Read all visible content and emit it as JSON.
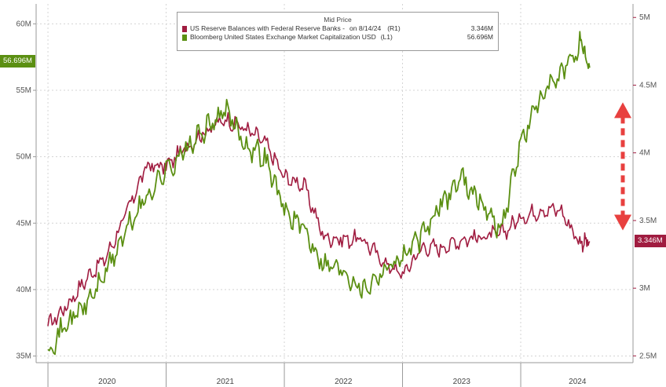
{
  "chart_data": {
    "type": "line",
    "title": "Mid Price",
    "x_axis": {
      "ticks": [
        "2020",
        "2021",
        "2022",
        "2023",
        "2024"
      ]
    },
    "y_left": {
      "ticks": [
        "35M",
        "40M",
        "45M",
        "50M",
        "55M",
        "60M"
      ],
      "range": [
        34.5,
        61.5
      ]
    },
    "y_right": {
      "ticks": [
        "2.5M",
        "3M",
        "3.5M",
        "4M",
        "4.5M",
        "5M"
      ],
      "range": [
        2.45,
        5.1
      ]
    },
    "series": [
      {
        "name": "US Reserve Balances with Federal Reserve Banks -",
        "axis": "R1",
        "legend_date": "on 8/14/24",
        "legend_axis_tag": "(R1)",
        "last_value_label": "3.346M",
        "color": "#a01c40",
        "x": [
          "2020-01",
          "2020-03",
          "2020-05",
          "2020-07",
          "2020-09",
          "2020-11",
          "2021-01",
          "2021-03",
          "2021-05",
          "2021-07",
          "2021-09",
          "2021-11",
          "2022-01",
          "2022-03",
          "2022-05",
          "2022-07",
          "2022-09",
          "2022-11",
          "2023-01",
          "2023-03",
          "2023-05",
          "2023-07",
          "2023-09",
          "2023-11",
          "2024-01",
          "2024-03",
          "2024-05",
          "2024-07",
          "2024-08"
        ],
        "values": [
          2.72,
          2.88,
          3.08,
          3.24,
          3.56,
          3.9,
          3.9,
          4.04,
          4.16,
          4.25,
          4.18,
          4.08,
          3.82,
          3.76,
          3.38,
          3.36,
          3.36,
          3.2,
          3.1,
          3.3,
          3.3,
          3.36,
          3.38,
          3.4,
          3.52,
          3.58,
          3.58,
          3.34,
          3.346
        ]
      },
      {
        "name": "Bloomberg United States Exchange Market Capitalization USD",
        "axis": "L1",
        "legend_axis_tag": "(L1)",
        "last_value_label": "56.696M",
        "color": "#5b8f12",
        "x": [
          "2020-01",
          "2020-03",
          "2020-05",
          "2020-07",
          "2020-09",
          "2020-11",
          "2021-01",
          "2021-03",
          "2021-05",
          "2021-07",
          "2021-09",
          "2021-11",
          "2022-01",
          "2022-03",
          "2022-05",
          "2022-07",
          "2022-09",
          "2022-11",
          "2023-01",
          "2023-03",
          "2023-05",
          "2023-07",
          "2023-09",
          "2023-11",
          "2024-01",
          "2024-03",
          "2024-05",
          "2024-07",
          "2024-08"
        ],
        "values": [
          35.5,
          37.5,
          39.0,
          41.5,
          44.5,
          47.0,
          49.0,
          50.5,
          52.0,
          53.5,
          51.0,
          50.0,
          46.0,
          44.5,
          42.0,
          41.5,
          40.0,
          41.5,
          42.5,
          44.0,
          46.5,
          48.5,
          46.5,
          44.5,
          51.0,
          54.5,
          56.0,
          58.5,
          56.696
        ]
      }
    ],
    "annotation": {
      "type": "double-arrow",
      "color": "#e8403f",
      "top": 4.35,
      "bottom": 3.45,
      "axis": "right"
    }
  }
}
